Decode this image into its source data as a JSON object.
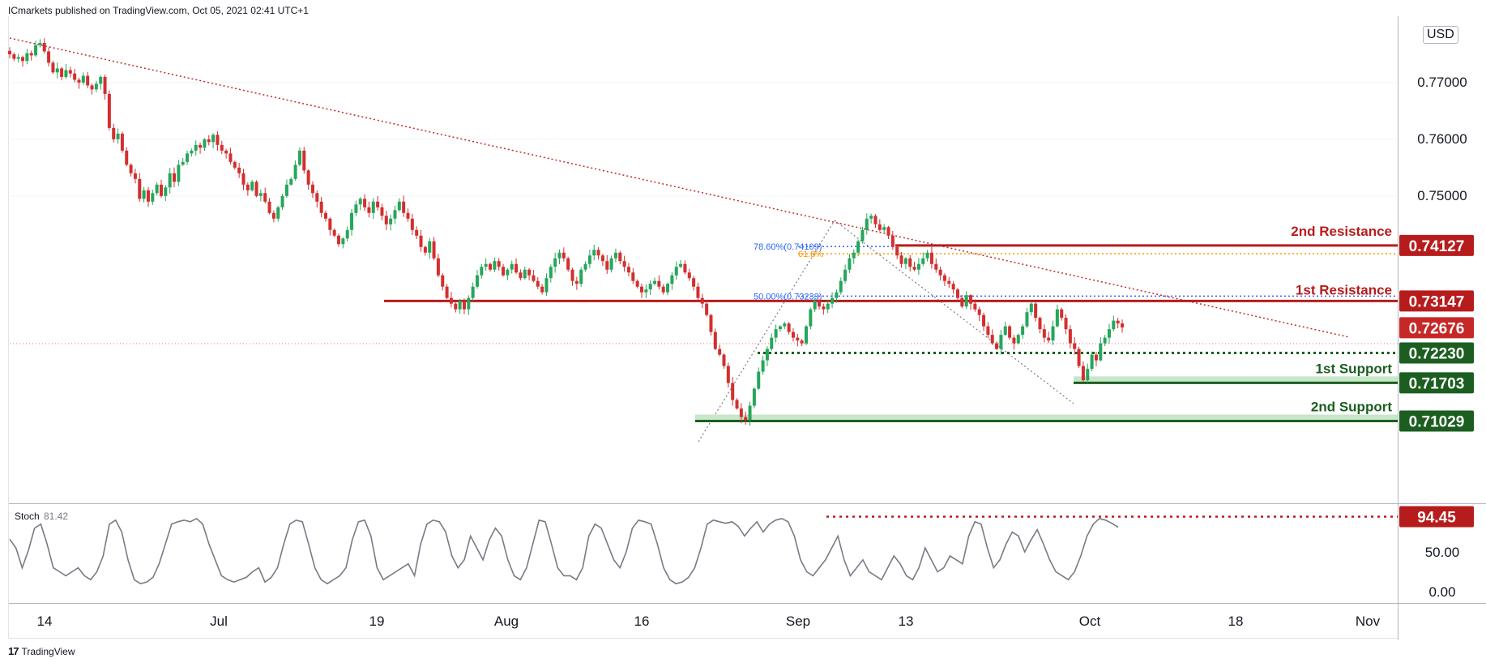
{
  "header": {
    "published": "ICmarkets published on TradingView.com, Oct 05, 2021 02:41 UTC+1"
  },
  "footer": {
    "brand": "TradingView",
    "logo_glyph": "17"
  },
  "currency": "USD",
  "chart_data": [
    {
      "type": "candlestick",
      "ylim": [
        0.7045,
        0.782
      ],
      "yticks": [
        "0.77000",
        "0.76000",
        "0.75000"
      ],
      "xticks": [
        "14",
        "Jul",
        "19",
        "Aug",
        "16",
        "Sep",
        "13",
        "Oct",
        "18",
        "Nov"
      ],
      "close_path": [
        [
          0.775,
          0.7742,
          0.7745,
          0.7738,
          0.7752,
          0.7748,
          0.7766,
          0.777,
          0.7755,
          0.7735,
          0.7718,
          0.7725,
          0.771,
          0.7722,
          0.7716,
          0.7705,
          0.77,
          0.7712,
          0.7695,
          0.7688,
          0.7698,
          0.771,
          0.768,
          0.762,
          0.76,
          0.761,
          0.758,
          0.7555,
          0.754,
          0.753,
          0.7495,
          0.751,
          0.749,
          0.7505,
          0.752,
          0.75,
          0.7515,
          0.754,
          0.7525,
          0.7555,
          0.756,
          0.7575,
          0.758,
          0.759,
          0.7585,
          0.76,
          0.7595,
          0.7608,
          0.759,
          0.758,
          0.7575,
          0.756,
          0.755,
          0.754,
          0.752,
          0.751,
          0.7525,
          0.75,
          0.7505,
          0.749,
          0.747,
          0.746,
          0.748,
          0.75,
          0.752,
          0.753,
          0.7555,
          0.758,
          0.7545,
          0.752,
          0.7505,
          0.749,
          0.747,
          0.746,
          0.744,
          0.743,
          0.7415,
          0.7425,
          0.744,
          0.747,
          0.7485,
          0.7495,
          0.748,
          0.747,
          0.749,
          0.748,
          0.7465,
          0.745,
          0.746,
          0.7475,
          0.749,
          0.747,
          0.746,
          0.744,
          0.743,
          0.741,
          0.74,
          0.742,
          0.739,
          0.736,
          0.734,
          0.732,
          0.731,
          0.73,
          0.7315,
          0.73,
          0.732,
          0.734,
          0.736,
          0.7375,
          0.738,
          0.737,
          0.7385,
          0.7375,
          0.736,
          0.737,
          0.738,
          0.7365,
          0.7355,
          0.737,
          0.736,
          0.735,
          0.734,
          0.733,
          0.7355,
          0.7375,
          0.739,
          0.74,
          0.739,
          0.737,
          0.735,
          0.7345,
          0.737,
          0.738,
          0.7395,
          0.7405,
          0.7395,
          0.7385,
          0.737,
          0.739,
          0.74,
          0.7385,
          0.7375,
          0.7365,
          0.735,
          0.734,
          0.733,
          0.7335,
          0.7345,
          0.735,
          0.734,
          0.733,
          0.7345,
          0.736,
          0.7375,
          0.738,
          0.7365,
          0.7355,
          0.734,
          0.732,
          0.731,
          0.729,
          0.726,
          0.723,
          0.722,
          0.72,
          0.717,
          0.714,
          0.7125,
          0.711,
          0.7105,
          0.713,
          0.716,
          0.719,
          0.721,
          0.723,
          0.725,
          0.7265,
          0.727,
          0.7275,
          0.726,
          0.725,
          0.7245,
          0.724,
          0.727,
          0.73,
          0.7315,
          0.7305,
          0.73,
          0.731,
          0.732,
          0.733,
          0.735,
          0.737,
          0.739,
          0.74,
          0.742,
          0.744,
          0.746,
          0.7465,
          0.745,
          0.744,
          0.7445,
          0.743,
          0.741,
          0.7395,
          0.738,
          0.739,
          0.7375,
          0.737,
          0.738,
          0.739,
          0.74,
          0.738,
          0.737,
          0.736,
          0.735,
          0.7345,
          0.7335,
          0.732,
          0.7305,
          0.7325,
          0.731,
          0.73,
          0.729,
          0.727,
          0.7255,
          0.724,
          0.723,
          0.7255,
          0.727,
          0.725,
          0.724,
          0.7255,
          0.727,
          0.7295,
          0.731,
          0.7285,
          0.7265,
          0.725,
          0.7245,
          0.727,
          0.73,
          0.7285,
          0.7265,
          0.724,
          0.723,
          0.72,
          0.7175,
          0.7195,
          0.722,
          0.721,
          0.724,
          0.725,
          0.7265,
          0.728,
          0.7275,
          0.7268
        ]
      ],
      "annotations": {
        "fib": [
          {
            "label": "78.60%(0.74109)",
            "value": 0.74109
          },
          {
            "label": "61.8%",
            "value": 0.7398
          },
          {
            "label": "50.00%(0.73233)",
            "value": 0.73233
          }
        ],
        "levels": [
          {
            "name": "2nd Resistance",
            "value": 0.74127,
            "label": "0.74127",
            "color": "#b71c1c"
          },
          {
            "name": "1st Resistance",
            "value": 0.73147,
            "label": "0.73147",
            "color": "#b71c1c"
          },
          {
            "name": "",
            "value": 0.72676,
            "label": "0.72676",
            "color": "#c62828"
          },
          {
            "name": "",
            "value": 0.7223,
            "label": "0.72230",
            "color": "#1b5e20"
          },
          {
            "name": "1st Support",
            "value": 0.71703,
            "label": "0.71703",
            "color": "#1b5e20"
          },
          {
            "name": "2nd Support",
            "value": 0.71029,
            "label": "0.71029",
            "color": "#1b5e20"
          }
        ]
      }
    },
    {
      "type": "line",
      "title": "Stoch",
      "value_label": "81.42",
      "ylim": [
        0,
        100
      ],
      "yticks": [
        "50.00",
        "0.00"
      ],
      "level": {
        "value": 94.45,
        "label": "94.45",
        "color": "#b71c1c"
      },
      "values": [
        66,
        55,
        30,
        52,
        80,
        85,
        60,
        30,
        25,
        20,
        25,
        30,
        20,
        15,
        25,
        45,
        85,
        90,
        75,
        40,
        15,
        10,
        12,
        18,
        35,
        60,
        85,
        88,
        90,
        88,
        92,
        85,
        60,
        40,
        20,
        15,
        12,
        15,
        18,
        25,
        30,
        12,
        18,
        30,
        60,
        85,
        90,
        88,
        60,
        30,
        15,
        10,
        15,
        20,
        30,
        65,
        88,
        90,
        70,
        30,
        15,
        20,
        25,
        30,
        35,
        20,
        60,
        85,
        90,
        88,
        75,
        45,
        30,
        40,
        70,
        55,
        40,
        65,
        80,
        70,
        40,
        20,
        15,
        30,
        60,
        90,
        88,
        60,
        30,
        20,
        20,
        15,
        30,
        70,
        85,
        80,
        60,
        40,
        30,
        50,
        80,
        90,
        88,
        85,
        60,
        30,
        15,
        10,
        12,
        18,
        30,
        55,
        85,
        90,
        88,
        86,
        88,
        82,
        70,
        80,
        88,
        75,
        85,
        90,
        92,
        88,
        70,
        40,
        25,
        20,
        30,
        40,
        55,
        70,
        40,
        20,
        30,
        40,
        25,
        20,
        15,
        30,
        45,
        35,
        20,
        15,
        30,
        55,
        40,
        25,
        30,
        45,
        40,
        35,
        70,
        88,
        85,
        55,
        30,
        40,
        60,
        75,
        70,
        50,
        65,
        78,
        60,
        40,
        25,
        20,
        15,
        25,
        45,
        70,
        85,
        92,
        90,
        86,
        81
      ]
    }
  ]
}
